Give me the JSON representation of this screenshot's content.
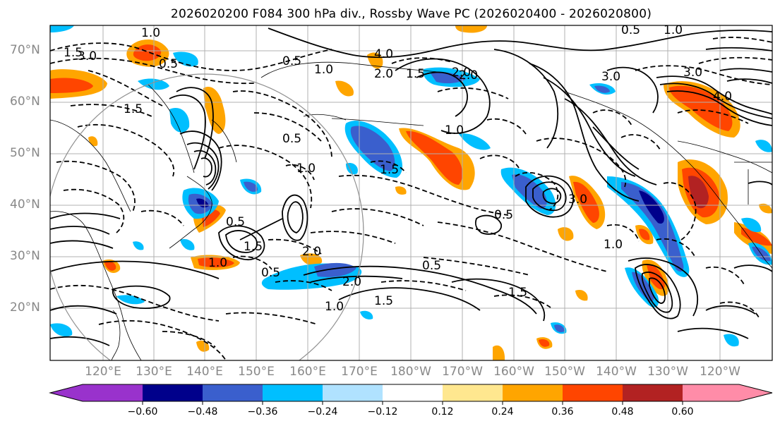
{
  "title": "2026020200 F084 300 hPa div., Rossby Wave PC (2026020400 - 2026020800)",
  "lat_labels": [
    "70°N",
    "60°N",
    "50°N",
    "40°N",
    "30°N",
    "20°N"
  ],
  "lon_labels": [
    "120°E",
    "130°E",
    "140°E",
    "150°E",
    "160°E",
    "170°E",
    "180°W",
    "170°W",
    "160°W",
    "150°W",
    "140°W",
    "130°W",
    "120°W"
  ],
  "colorbar": {
    "ticks": [
      "−0.60",
      "−0.48",
      "−0.36",
      "−0.24",
      "−0.12",
      "0.12",
      "0.24",
      "0.36",
      "0.48",
      "0.60"
    ],
    "colors": [
      "#9932cc",
      "#00008b",
      "#3a5fcd",
      "#00bfff",
      "#b0e2ff",
      "#ffffff",
      "#ffe78f",
      "#ffa500",
      "#ff4500",
      "#b22222",
      "#ff8ca8"
    ]
  },
  "contour_labels": [
    "1.0",
    "1.5",
    "0.5",
    "3.0",
    "2.0",
    "4.0",
    "0.5",
    "1.5",
    "1.0",
    "2.0",
    "3.0",
    "1.0",
    "1.5",
    "0.5",
    "1.0",
    "2.0",
    "0.5",
    "1.0",
    "1.5",
    "2.0",
    "0.5",
    "1.5",
    "0.5",
    "1.0",
    "0.5",
    "1.5",
    "1.0",
    "3.0",
    "4.0",
    "1.0",
    "0.5",
    "1.5",
    "2.0",
    "3.0"
  ]
}
